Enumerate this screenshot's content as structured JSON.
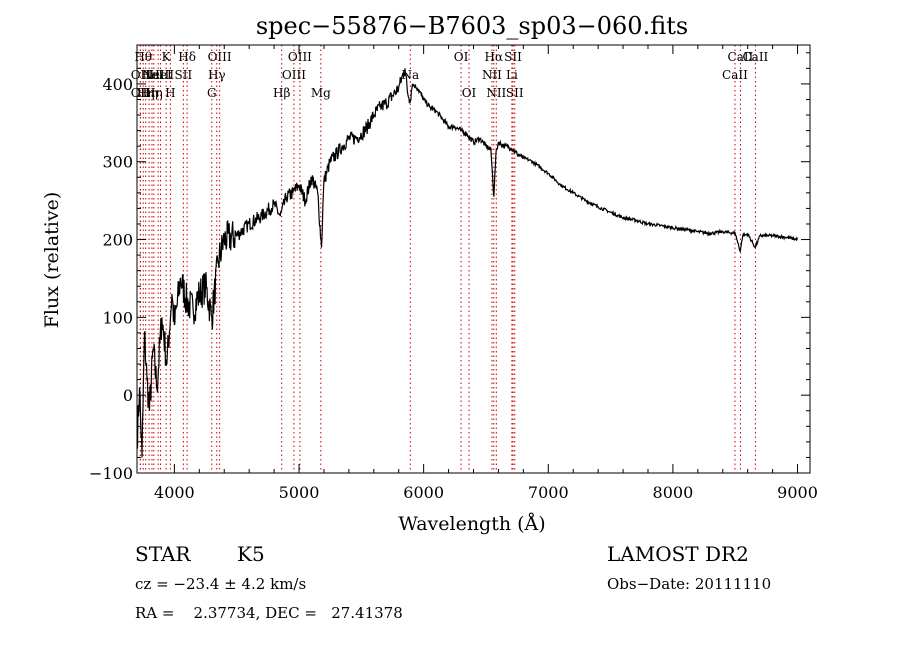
{
  "chart_data": {
    "type": "line",
    "title": "spec−55876−B7603_sp03−060.fits",
    "xlabel": "Wavelength (Å)",
    "ylabel": "Flux (relative)",
    "xlim": [
      3700,
      9100
    ],
    "ylim": [
      -100,
      450
    ],
    "xticks": [
      4000,
      5000,
      6000,
      7000,
      8000,
      9000
    ],
    "yticks": [
      -100,
      0,
      100,
      200,
      300,
      400
    ],
    "line_color": "#000000",
    "marker_color": "#cc0000",
    "series": [
      {
        "x": [
          3700,
          3720,
          3740,
          3760,
          3780,
          3800,
          3830,
          3860,
          3900,
          3940,
          3980,
          4000,
          4050,
          4100,
          4150,
          4200,
          4250,
          4300,
          4350,
          4400,
          4500,
          4600,
          4700,
          4800,
          4850,
          4900,
          4950,
          5000,
          5050,
          5100,
          5150,
          5180,
          5200,
          5250,
          5300,
          5350,
          5400,
          5450,
          5500,
          5550,
          5600,
          5650,
          5700,
          5750,
          5800,
          5850,
          5870,
          5890,
          5910,
          5950,
          6000,
          6050,
          6100,
          6150,
          6200,
          6250,
          6300,
          6350,
          6400,
          6450,
          6500,
          6540,
          6563,
          6580,
          6600,
          6650,
          6700,
          6750,
          6800,
          6850,
          6900,
          7000,
          7100,
          7200,
          7300,
          7400,
          7500,
          7600,
          7700,
          7800,
          7900,
          8000,
          8100,
          8200,
          8300,
          8400,
          8500,
          8540,
          8560,
          8600,
          8660,
          8700,
          8800,
          8900,
          9000
        ],
        "y": [
          -60,
          10,
          -80,
          80,
          20,
          -20,
          60,
          10,
          100,
          40,
          130,
          90,
          150,
          120,
          110,
          130,
          140,
          100,
          170,
          200,
          205,
          220,
          230,
          245,
          230,
          255,
          260,
          270,
          250,
          280,
          260,
          190,
          275,
          300,
          310,
          320,
          330,
          330,
          335,
          345,
          360,
          370,
          375,
          385,
          395,
          420,
          390,
          380,
          400,
          395,
          380,
          370,
          365,
          355,
          345,
          345,
          340,
          335,
          325,
          330,
          320,
          315,
          255,
          310,
          325,
          320,
          318,
          310,
          305,
          302,
          297,
          285,
          270,
          260,
          250,
          242,
          235,
          228,
          225,
          220,
          218,
          215,
          213,
          210,
          208,
          210,
          208,
          185,
          205,
          207,
          190,
          205,
          205,
          203,
          200
        ]
      }
    ],
    "line_markers": [
      {
        "x": 3750,
        "label": "Hθ",
        "row": 0
      },
      {
        "x": 3727,
        "label": "OII",
        "row": 1
      },
      {
        "x": 3727,
        "label": "OII",
        "row": 2
      },
      {
        "x": 3770,
        "label": "Hη",
        "row": 2
      },
      {
        "x": 3797,
        "label": "Hη",
        "row": 2
      },
      {
        "x": 3820,
        "label": "HeI",
        "row": 1
      },
      {
        "x": 3835,
        "label": "Hη",
        "row": 2
      },
      {
        "x": 3870,
        "label": "NeIII",
        "row": 1
      },
      {
        "x": 3889,
        "label": "HeI",
        "row": 1
      },
      {
        "x": 3934,
        "label": "K",
        "row": 0
      },
      {
        "x": 3968,
        "label": "H",
        "row": 2
      },
      {
        "x": 4072,
        "label": "SII",
        "row": 1
      },
      {
        "x": 4102,
        "label": "Hδ",
        "row": 0
      },
      {
        "x": 4300,
        "label": "G",
        "row": 2
      },
      {
        "x": 4340,
        "label": "Hγ",
        "row": 1
      },
      {
        "x": 4363,
        "label": "OIII",
        "row": 0
      },
      {
        "x": 4861,
        "label": "Hβ",
        "row": 2
      },
      {
        "x": 4959,
        "label": "OIII",
        "row": 1
      },
      {
        "x": 5007,
        "label": "OIII",
        "row": 0
      },
      {
        "x": 5175,
        "label": "Mg",
        "row": 2
      },
      {
        "x": 5893,
        "label": "Na",
        "row": 1
      },
      {
        "x": 6300,
        "label": "OI",
        "row": 0
      },
      {
        "x": 6364,
        "label": "OI",
        "row": 2
      },
      {
        "x": 6548,
        "label": "NII",
        "row": 1
      },
      {
        "x": 6563,
        "label": "Hα",
        "row": 0
      },
      {
        "x": 6583,
        "label": "NII",
        "row": 2
      },
      {
        "x": 6708,
        "label": "Li",
        "row": 1
      },
      {
        "x": 6717,
        "label": "SII",
        "row": 0
      },
      {
        "x": 6731,
        "label": "SII",
        "row": 2
      },
      {
        "x": 8498,
        "label": "CaII",
        "row": 1
      },
      {
        "x": 8542,
        "label": "CaII",
        "row": 0
      },
      {
        "x": 8662,
        "label": "CaII",
        "row": 0
      }
    ]
  },
  "info": {
    "class": "STAR",
    "subclass": "K5",
    "survey": "LAMOST DR2",
    "cz": "cz = −23.4 ± 4.2 km/s",
    "obs_date": "Obs−Date: 20111110",
    "radec": "RA =    2.37734, DEC =   27.41378"
  }
}
